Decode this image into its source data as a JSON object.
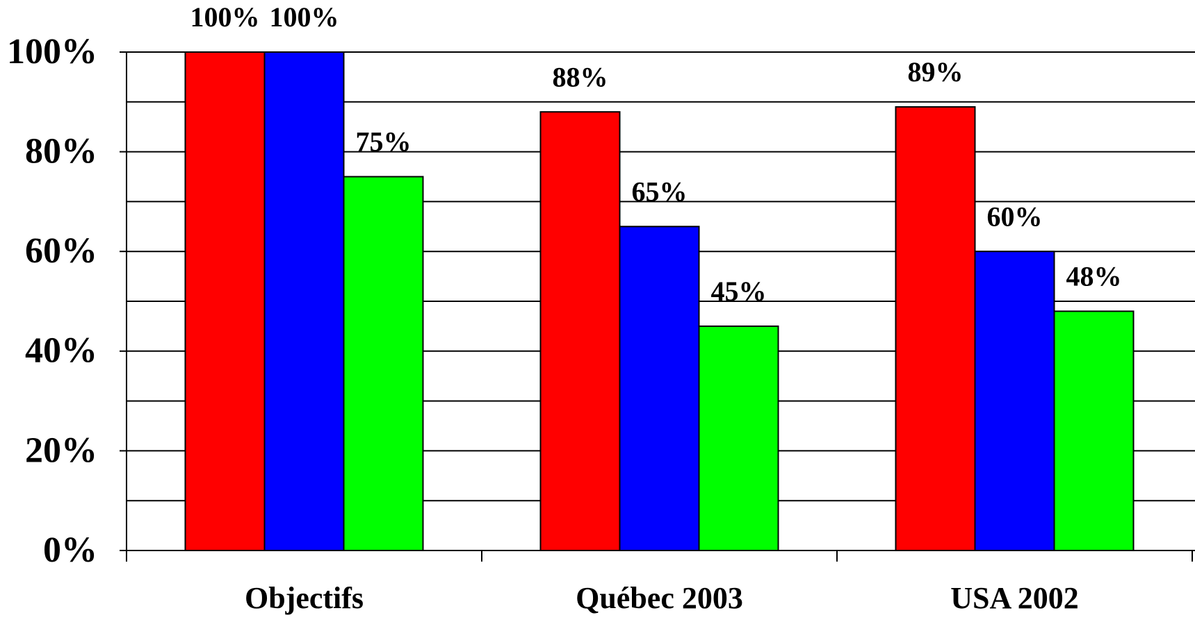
{
  "chart_data": {
    "type": "bar",
    "categories": [
      "Objectifs",
      "Québec 2003",
      "USA 2002"
    ],
    "series": [
      {
        "color": "#ff0000",
        "values": [
          100,
          88,
          89
        ],
        "value_labels": [
          "100%",
          "88%",
          "89%"
        ]
      },
      {
        "color": "#0000ff",
        "values": [
          100,
          65,
          60
        ],
        "value_labels": [
          "100%",
          "65%",
          "60%"
        ]
      },
      {
        "color": "#00ff00",
        "values": [
          75,
          45,
          48
        ],
        "value_labels": [
          "75%",
          "45%",
          "48%"
        ]
      }
    ],
    "ylim": [
      0,
      100
    ],
    "yticks": [
      {
        "value": 0,
        "label": "0%"
      },
      {
        "value": 20,
        "label": "20%"
      },
      {
        "value": 40,
        "label": "40%"
      },
      {
        "value": 60,
        "label": "60%"
      },
      {
        "value": 80,
        "label": "80%"
      },
      {
        "value": 100,
        "label": "100%"
      }
    ],
    "minor_yticks": [
      10,
      30,
      50,
      70,
      90
    ],
    "grid": true
  }
}
